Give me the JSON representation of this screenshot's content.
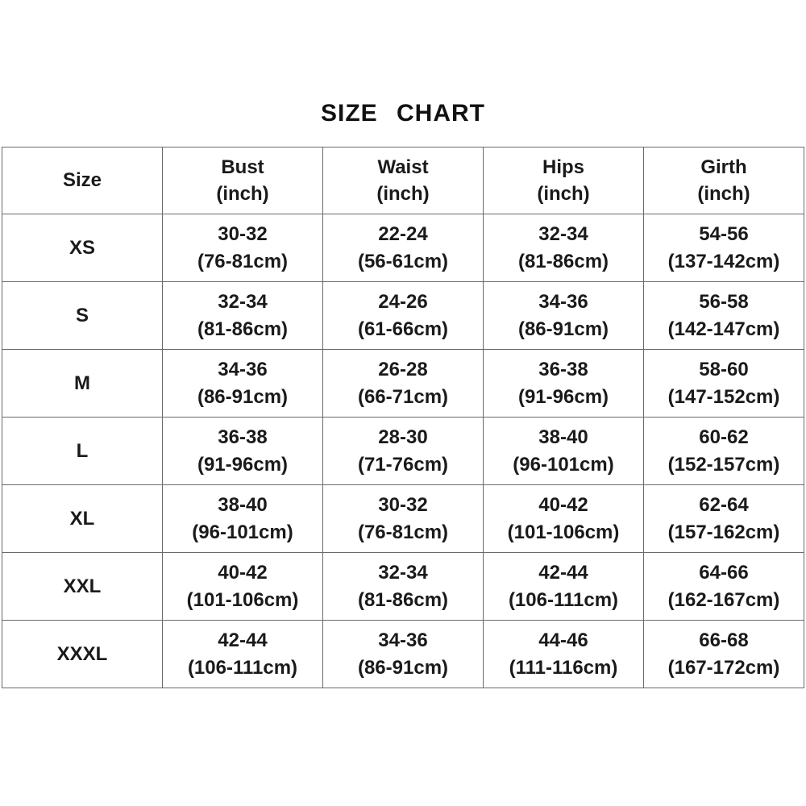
{
  "title": "SIZE CHART",
  "size_chart": {
    "columns": [
      {
        "label": "Size",
        "unit": ""
      },
      {
        "label": "Bust",
        "unit": "(inch)"
      },
      {
        "label": "Waist",
        "unit": "(inch)"
      },
      {
        "label": "Hips",
        "unit": "(inch)"
      },
      {
        "label": "Girth",
        "unit": "(inch)"
      }
    ],
    "rows": [
      {
        "size": "XS",
        "bust_in": "30-32",
        "bust_cm": "(76-81cm)",
        "waist_in": "22-24",
        "waist_cm": "(56-61cm)",
        "hips_in": "32-34",
        "hips_cm": "(81-86cm)",
        "girth_in": "54-56",
        "girth_cm": "(137-142cm)"
      },
      {
        "size": "S",
        "bust_in": "32-34",
        "bust_cm": "(81-86cm)",
        "waist_in": "24-26",
        "waist_cm": "(61-66cm)",
        "hips_in": "34-36",
        "hips_cm": "(86-91cm)",
        "girth_in": "56-58",
        "girth_cm": "(142-147cm)"
      },
      {
        "size": "M",
        "bust_in": "34-36",
        "bust_cm": "(86-91cm)",
        "waist_in": "26-28",
        "waist_cm": "(66-71cm)",
        "hips_in": "36-38",
        "hips_cm": "(91-96cm)",
        "girth_in": "58-60",
        "girth_cm": "(147-152cm)"
      },
      {
        "size": "L",
        "bust_in": "36-38",
        "bust_cm": "(91-96cm)",
        "waist_in": "28-30",
        "waist_cm": "(71-76cm)",
        "hips_in": "38-40",
        "hips_cm": "(96-101cm)",
        "girth_in": "60-62",
        "girth_cm": "(152-157cm)"
      },
      {
        "size": "XL",
        "bust_in": "38-40",
        "bust_cm": "(96-101cm)",
        "waist_in": "30-32",
        "waist_cm": "(76-81cm)",
        "hips_in": "40-42",
        "hips_cm": "(101-106cm)",
        "girth_in": "62-64",
        "girth_cm": "(157-162cm)"
      },
      {
        "size": "XXL",
        "bust_in": "40-42",
        "bust_cm": "(101-106cm)",
        "waist_in": "32-34",
        "waist_cm": "(81-86cm)",
        "hips_in": "42-44",
        "hips_cm": "(106-111cm)",
        "girth_in": "64-66",
        "girth_cm": "(162-167cm)"
      },
      {
        "size": "XXXL",
        "bust_in": "42-44",
        "bust_cm": "(106-111cm)",
        "waist_in": "34-36",
        "waist_cm": "(86-91cm)",
        "hips_in": "44-46",
        "hips_cm": "(111-116cm)",
        "girth_in": "66-68",
        "girth_cm": "(167-172cm)"
      }
    ]
  },
  "chart_data": {
    "type": "table",
    "title": "SIZE CHART",
    "columns": [
      "Size",
      "Bust (inch)",
      "Waist (inch)",
      "Hips (inch)",
      "Girth (inch)"
    ],
    "rows": [
      [
        "XS",
        "30-32 (76-81cm)",
        "22-24 (56-61cm)",
        "32-34 (81-86cm)",
        "54-56 (137-142cm)"
      ],
      [
        "S",
        "32-34 (81-86cm)",
        "24-26 (61-66cm)",
        "34-36 (86-91cm)",
        "56-58 (142-147cm)"
      ],
      [
        "M",
        "34-36 (86-91cm)",
        "26-28 (66-71cm)",
        "36-38 (91-96cm)",
        "58-60 (147-152cm)"
      ],
      [
        "L",
        "36-38 (91-96cm)",
        "28-30 (71-76cm)",
        "38-40 (96-101cm)",
        "60-62 (152-157cm)"
      ],
      [
        "XL",
        "38-40 (96-101cm)",
        "30-32 (76-81cm)",
        "40-42 (101-106cm)",
        "62-64 (157-162cm)"
      ],
      [
        "XXL",
        "40-42 (101-106cm)",
        "32-34 (81-86cm)",
        "42-44 (106-111cm)",
        "64-66 (162-167cm)"
      ],
      [
        "XXXL",
        "42-44 (106-111cm)",
        "34-36 (86-91cm)",
        "44-46 (111-116cm)",
        "66-68 (167-172cm)"
      ]
    ],
    "text_color": "#1a1a1a",
    "border_color": "#6a6a6a",
    "background_color": "#ffffff"
  }
}
